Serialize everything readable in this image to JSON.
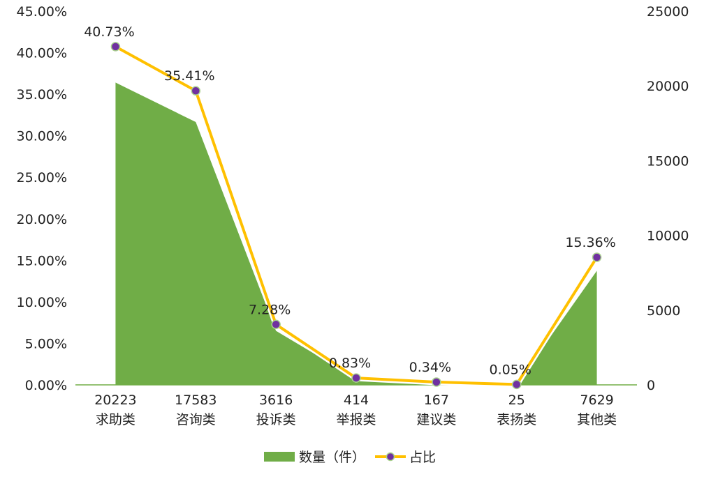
{
  "chart_data": {
    "type": "area",
    "categories": [
      "求助类",
      "咨询类",
      "投诉类",
      "举报类",
      "建议类",
      "表扬类",
      "其他类"
    ],
    "counts": [
      "20223",
      "17583",
      "3616",
      "414",
      "167",
      "25",
      "7629"
    ],
    "series": [
      {
        "name": "数量（件）",
        "type": "area",
        "axis": "right",
        "values": [
          20223,
          17583,
          3616,
          414,
          167,
          25,
          7629
        ],
        "color": "#70ad47"
      },
      {
        "name": "占比",
        "type": "line",
        "axis": "left",
        "values": [
          40.73,
          35.41,
          7.28,
          0.83,
          0.34,
          0.05,
          15.36
        ],
        "labels": [
          "40.73%",
          "35.41%",
          "7.28%",
          "0.83%",
          "0.34%",
          "0.05%",
          "15.36%"
        ],
        "color": "#ffc000",
        "marker_color": "#7030a0"
      }
    ],
    "y_left": {
      "ylim": [
        0,
        45
      ],
      "ticks": [
        "0.00%",
        "5.00%",
        "10.00%",
        "15.00%",
        "20.00%",
        "25.00%",
        "30.00%",
        "35.00%",
        "40.00%",
        "45.00%"
      ]
    },
    "y_right": {
      "ylim": [
        0,
        25000
      ],
      "ticks": [
        "0",
        "5000",
        "10000",
        "15000",
        "20000",
        "25000"
      ]
    },
    "grid": false,
    "legend_position": "bottom"
  }
}
